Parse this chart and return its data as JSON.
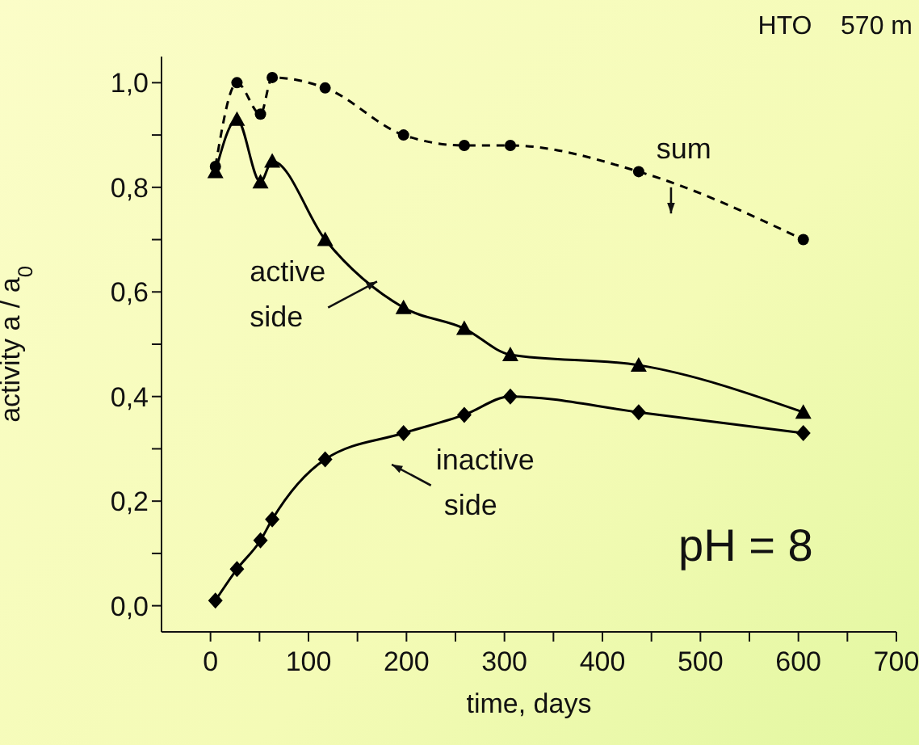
{
  "chart_data": {
    "type": "line",
    "xlabel": "time, days",
    "ylabel": "activity a / a$_{0}$",
    "annotations": [
      "HTO    570 m",
      "pH = 8"
    ],
    "series": [
      {
        "name": "sum",
        "color": "#000000",
        "marker": "circle",
        "line_style": "dashed",
        "x": [
          5,
          27,
          51,
          63,
          117,
          197,
          259,
          306,
          437,
          605
        ],
        "values": [
          0.84,
          1.0,
          0.94,
          1.01,
          0.99,
          0.9,
          0.88,
          0.88,
          0.83,
          0.7
        ]
      },
      {
        "name": "active side",
        "color": "#000000",
        "marker": "triangle",
        "line_style": "solid",
        "x": [
          5,
          27,
          51,
          63,
          117,
          197,
          259,
          306,
          437,
          605
        ],
        "values": [
          0.83,
          0.93,
          0.81,
          0.85,
          0.7,
          0.57,
          0.53,
          0.48,
          0.46,
          0.37
        ]
      },
      {
        "name": "inactive side",
        "color": "#000000",
        "marker": "diamond",
        "line_style": "solid",
        "x": [
          5,
          27,
          51,
          63,
          117,
          197,
          259,
          306,
          437,
          605
        ],
        "values": [
          0.01,
          0.07,
          0.125,
          0.165,
          0.28,
          0.33,
          0.365,
          0.4,
          0.37,
          0.33
        ]
      }
    ],
    "xlim": [
      -50,
      700
    ],
    "xticks": [
      0,
      {
        "value": 50,
        "label": null
      },
      100,
      {
        "value": 150,
        "label": null
      },
      200,
      {
        "value": 250,
        "label": null
      },
      300,
      {
        "value": 350,
        "label": null
      },
      400,
      {
        "value": 450,
        "label": null
      },
      500,
      {
        "value": 550,
        "label": null
      },
      600,
      {
        "value": 650,
        "label": null
      },
      700
    ],
    "ylim": [
      -0.05,
      1.05
    ],
    "yticks": [
      {
        "value": 0,
        "label": "0,0"
      },
      {
        "value": 0.1,
        "label": null
      },
      {
        "value": 0.2,
        "label": "0,2"
      },
      {
        "value": 0.3,
        "label": null
      },
      {
        "value": 0.4,
        "label": "0,4"
      },
      {
        "value": 0.5,
        "label": null
      },
      {
        "value": 0.6,
        "label": "0,6"
      },
      {
        "value": 0.7,
        "label": null
      },
      {
        "value": 0.8,
        "label": "0,8"
      },
      {
        "value": 0.9,
        "label": null
      },
      {
        "value": 1,
        "label": "1,0"
      }
    ],
    "grid": false,
    "legend": false
  }
}
